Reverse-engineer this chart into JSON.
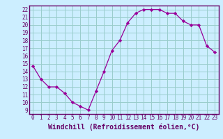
{
  "x": [
    0,
    1,
    2,
    3,
    4,
    5,
    6,
    7,
    8,
    9,
    10,
    11,
    12,
    13,
    14,
    15,
    16,
    17,
    18,
    19,
    20,
    21,
    22,
    23
  ],
  "y": [
    14.7,
    13.0,
    12.0,
    12.0,
    11.2,
    10.0,
    9.5,
    9.0,
    11.5,
    14.0,
    16.7,
    18.0,
    20.3,
    21.5,
    22.0,
    22.0,
    22.0,
    21.5,
    21.5,
    20.5,
    20.0,
    20.0,
    17.3,
    16.5
  ],
  "xlim": [
    -0.5,
    23.5
  ],
  "ylim": [
    8.5,
    22.5
  ],
  "yticks": [
    9,
    10,
    11,
    12,
    13,
    14,
    15,
    16,
    17,
    18,
    19,
    20,
    21,
    22
  ],
  "xticks": [
    0,
    1,
    2,
    3,
    4,
    5,
    6,
    7,
    8,
    9,
    10,
    11,
    12,
    13,
    14,
    15,
    16,
    17,
    18,
    19,
    20,
    21,
    22,
    23
  ],
  "xlabel": "Windchill (Refroidissement éolien,°C)",
  "line_color": "#990099",
  "marker_color": "#990099",
  "bg_color": "#cceeff",
  "grid_color": "#99cccc",
  "axis_color": "#660066",
  "label_color": "#660066",
  "tick_fontsize": 5.5,
  "xlabel_fontsize": 7.0
}
